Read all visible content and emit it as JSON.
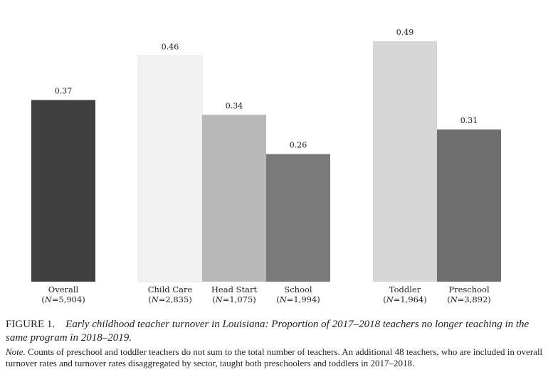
{
  "chart_data": {
    "type": "bar",
    "ylim": [
      0,
      0.5
    ],
    "grid": false,
    "bars": [
      {
        "name": "Overall",
        "n_label": "(N=5,904)",
        "value": 0.37,
        "value_label": "0.37",
        "color": "#404040"
      },
      {
        "name": "Child Care",
        "n_label": "(N=2,835)",
        "value": 0.46,
        "value_label": "0.46",
        "color": "#f2f2f2"
      },
      {
        "name": "Head Start",
        "n_label": "(N=1,075)",
        "value": 0.34,
        "value_label": "0.34",
        "color": "#b8b8b8"
      },
      {
        "name": "School",
        "n_label": "(N=1,994)",
        "value": 0.26,
        "value_label": "0.26",
        "color": "#7a7a7a"
      },
      {
        "name": "Toddler",
        "n_label": "(N=1,964)",
        "value": 0.49,
        "value_label": "0.49",
        "color": "#d6d6d6"
      },
      {
        "name": "Preschool",
        "n_label": "(N=3,892)",
        "value": 0.31,
        "value_label": "0.31",
        "color": "#6e6e6e"
      }
    ]
  },
  "caption": {
    "figure_label": "FIGURE 1.",
    "figure_title": "Early childhood teacher turnover in Louisiana: Proportion of 2017–2018 teachers no longer teaching in the same program in 2018–2019.",
    "note_label": "Note.",
    "note_text": "Counts of preschool and toddler teachers do not sum to the total number of teachers. An additional 48 teachers, who are included in overall turnover rates and turnover rates disaggregated by sector, taught both preschoolers and toddlers in 2017–2018."
  }
}
